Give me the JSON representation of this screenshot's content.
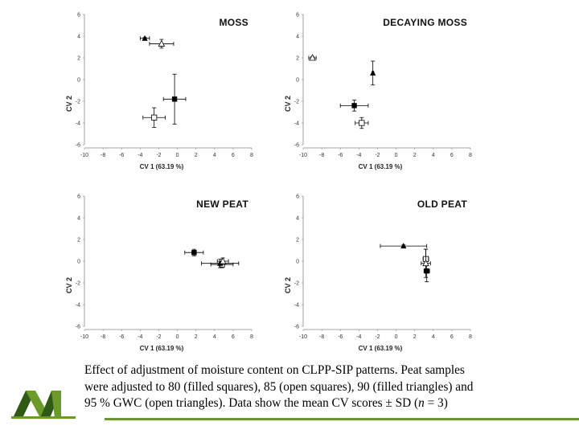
{
  "colors": {
    "green": "#6b9a2a",
    "dark_green": "#2f5a14",
    "marker": "#000000",
    "axis": "#888888"
  },
  "icons": {
    "logo": "m-logo-icon"
  },
  "caption": {
    "line1": "Effect of adjustment of moisture content on CLPP-SIP patterns. Peat samples",
    "line2": "were adjusted to 80 (filled squares), 85 (open squares), 90 (filled triangles) and",
    "line3a": "95 % GWC (open triangles). Data show the mean CV scores ",
    "pm": "±",
    "line3b": " SD (",
    "n": "n",
    "line3c": " = 3)"
  },
  "chart_data": [
    {
      "type": "scatter",
      "title": "MOSS",
      "xlabel": "CV 1 (63.19 %)",
      "ylabel": "CV 2",
      "xlim": [
        -10,
        8
      ],
      "ylim": [
        -6,
        6
      ],
      "xticks": [
        "-10",
        "-8",
        "-6",
        "-4",
        "-2",
        "0",
        "2",
        "4",
        "6",
        "8"
      ],
      "yticks": [
        "6",
        "4",
        "2",
        "0",
        "-2",
        "-4",
        "-6"
      ],
      "points": [
        {
          "name": "80 % GWC",
          "marker": "filled-square",
          "x": -0.3,
          "y": -1.8,
          "xerr": 1.2,
          "yerr": 2.3
        },
        {
          "name": "85 % GWC",
          "marker": "open-square",
          "x": -2.5,
          "y": -3.5,
          "xerr": 1.2,
          "yerr": 0.9
        },
        {
          "name": "90 % GWC",
          "marker": "filled-triangle",
          "x": -3.5,
          "y": 3.8,
          "xerr": 0.5,
          "yerr": 0.1
        },
        {
          "name": "95 % GWC",
          "marker": "open-triangle",
          "x": -1.7,
          "y": 3.3,
          "xerr": 1.3,
          "yerr": 0.4
        }
      ]
    },
    {
      "type": "scatter",
      "title": "DECAYING MOSS",
      "xlabel": "CV 1 (63.19 %)",
      "ylabel": "CV 2",
      "xlim": [
        -10,
        8
      ],
      "ylim": [
        -6,
        6
      ],
      "xticks": [
        "-10",
        "-8",
        "-6",
        "-4",
        "-2",
        "0",
        "2",
        "4",
        "6",
        "8"
      ],
      "yticks": [
        "6",
        "4",
        "2",
        "0",
        "-2",
        "-4",
        "-6"
      ],
      "points": [
        {
          "name": "80 % GWC",
          "marker": "filled-square",
          "x": -4.5,
          "y": -2.4,
          "xerr": 1.5,
          "yerr": 0.5
        },
        {
          "name": "85 % GWC",
          "marker": "open-square",
          "x": -3.7,
          "y": -4.0,
          "xerr": 0.7,
          "yerr": 0.5
        },
        {
          "name": "90 % GWC",
          "marker": "filled-triangle",
          "x": -2.5,
          "y": 0.6,
          "xerr": 0.1,
          "yerr": 1.1
        },
        {
          "name": "95 % GWC",
          "marker": "open-triangle",
          "x": -9.0,
          "y": 2.0,
          "xerr": 0.4,
          "yerr": 0.1
        }
      ]
    },
    {
      "type": "scatter",
      "title": "NEW PEAT",
      "xlabel": "CV 1 (63.19 %)",
      "ylabel": "CV 2",
      "xlim": [
        -10,
        8
      ],
      "ylim": [
        -6,
        6
      ],
      "xticks": [
        "-10",
        "-8",
        "-6",
        "-4",
        "-2",
        "0",
        "2",
        "4",
        "6",
        "8"
      ],
      "yticks": [
        "6",
        "4",
        "2",
        "0",
        "-2",
        "-4",
        "-6"
      ],
      "points": [
        {
          "name": "80 % GWC",
          "marker": "filled-square",
          "x": 1.8,
          "y": 0.8,
          "xerr": 1.0,
          "yerr": 0.3
        },
        {
          "name": "85 % GWC",
          "marker": "open-square",
          "x": 4.8,
          "y": -0.3,
          "xerr": 1.2,
          "yerr": 0.3
        },
        {
          "name": "90 % GWC",
          "marker": "filled-triangle",
          "x": 4.6,
          "y": -0.2,
          "xerr": 2.0,
          "yerr": 0.4
        },
        {
          "name": "95 % GWC",
          "marker": "open-triangle",
          "x": 4.9,
          "y": 0.0,
          "xerr": 0.6,
          "yerr": 0.3
        }
      ]
    },
    {
      "type": "scatter",
      "title": "OLD PEAT",
      "xlabel": "CV 1 (63.19 %)",
      "ylabel": "CV 2",
      "xlim": [
        -10,
        8
      ],
      "ylim": [
        -6,
        6
      ],
      "xticks": [
        "-10",
        "-8",
        "-6",
        "-4",
        "-2",
        "0",
        "2",
        "4",
        "6",
        "8"
      ],
      "yticks": [
        "6",
        "4",
        "2",
        "0",
        "-2",
        "-4",
        "-6"
      ],
      "points": [
        {
          "name": "80 % GWC",
          "marker": "filled-square",
          "x": 3.3,
          "y": -0.9,
          "xerr": 0.3,
          "yerr": 1.0
        },
        {
          "name": "85 % GWC",
          "marker": "open-square",
          "x": 3.2,
          "y": 0.2,
          "xerr": 0.3,
          "yerr": 0.9
        },
        {
          "name": "90 % GWC",
          "marker": "filled-triangle",
          "x": 0.8,
          "y": 1.4,
          "xerr": 2.5,
          "yerr": 0.1
        },
        {
          "name": "95 % GWC",
          "marker": "open-triangle",
          "x": 3.2,
          "y": -0.2,
          "xerr": 0.5,
          "yerr": 1.3
        }
      ]
    }
  ]
}
